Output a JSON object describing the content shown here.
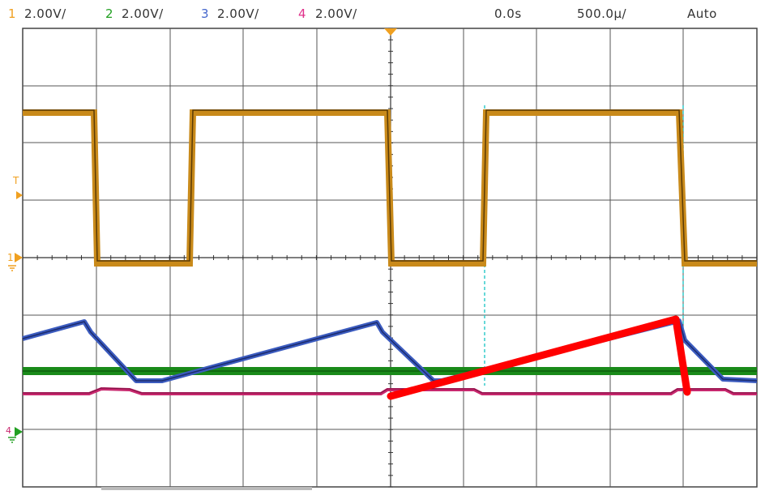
{
  "status_bar": {
    "channels": [
      {
        "num": "1",
        "scale": "2.00V/",
        "color": "#f0a020"
      },
      {
        "num": "2",
        "scale": "2.00V/",
        "color": "#22a022"
      },
      {
        "num": "3",
        "scale": "2.00V/",
        "color": "#4466cc"
      },
      {
        "num": "4",
        "scale": "2.00V/",
        "color": "#e0308a"
      }
    ],
    "time_offset": "0.0s",
    "time_scale": "500.0µ/",
    "trigger_mode": "Auto"
  },
  "markers": {
    "trigger_label": "T",
    "ch1_ground_label": "1",
    "ch4_ground_label": "4"
  },
  "colors": {
    "ch1": "#c98a1a",
    "ch2": "#1a8a1a",
    "ch3": "#3b5bbf",
    "ch4": "#c8286e",
    "annotation": "#ff0000",
    "cursor": "#33cccc",
    "grid": "#555555"
  }
}
